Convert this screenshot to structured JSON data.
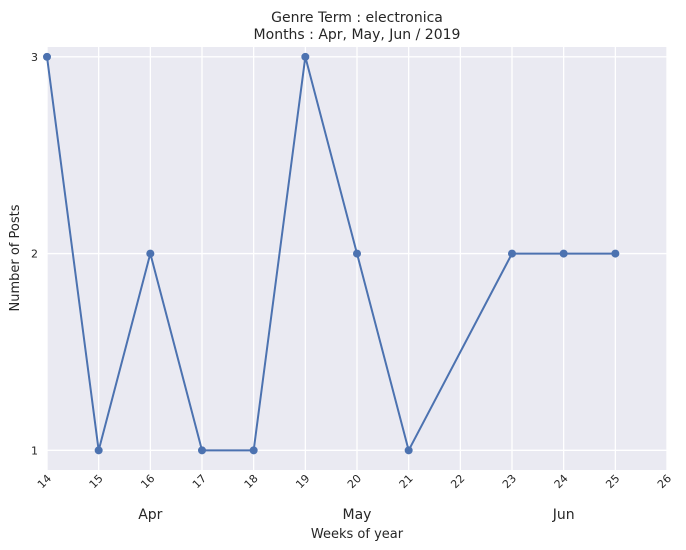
{
  "chart_data": {
    "type": "line",
    "title": "Genre Term : electronica",
    "subtitle": "Months : Apr, May, Jun / 2019",
    "xlabel": "Weeks of year",
    "ylabel": "Number of Posts",
    "x_ticks": [
      "14",
      "15",
      "16",
      "17",
      "18",
      "19",
      "20",
      "21",
      "22",
      "23",
      "24",
      "25",
      "26"
    ],
    "y_ticks": [
      "1",
      "2",
      "3"
    ],
    "month_labels": [
      {
        "label": "Apr",
        "week": 16
      },
      {
        "label": "May",
        "week": 20
      },
      {
        "label": "Jun",
        "week": 24
      }
    ],
    "series": [
      {
        "x": [
          14,
          15,
          16,
          17,
          18,
          19,
          20,
          21,
          23,
          24,
          25
        ],
        "values": [
          3,
          1,
          2,
          1,
          1,
          3,
          2,
          1,
          2,
          2,
          2
        ]
      }
    ],
    "xlim": [
      14,
      26
    ],
    "ylim": [
      0.9,
      3.05
    ],
    "grid": true,
    "colors": {
      "background": "#eaeaf2",
      "grid": "#ffffff",
      "line": "#4c72b0"
    }
  }
}
